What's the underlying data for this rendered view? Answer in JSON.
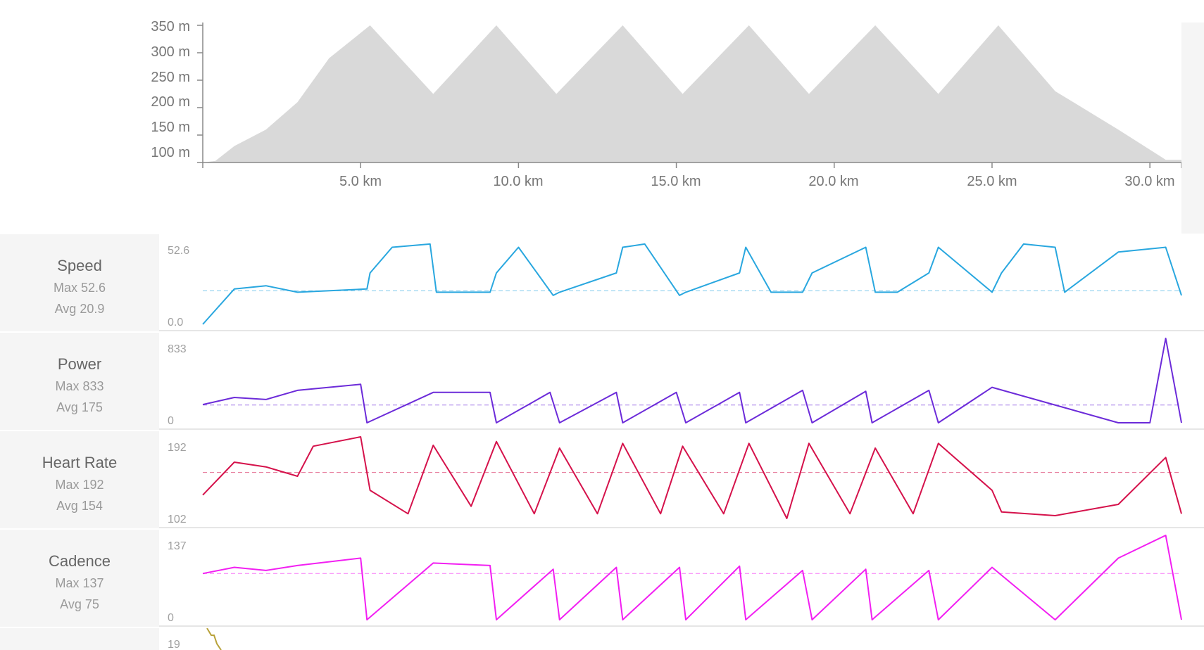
{
  "elevation": {
    "y_ticks": [
      "350 m",
      "300 m",
      "250 m",
      "200 m",
      "150 m",
      "100 m"
    ],
    "x_ticks": [
      "5.0 km",
      "10.0 km",
      "15.0 km",
      "20.0 km",
      "25.0 km",
      "30.0 km"
    ]
  },
  "metrics": [
    {
      "key": "speed",
      "name": "Speed",
      "max": "Max 52.6",
      "avg": "Avg 20.9",
      "top": "52.6",
      "bottom": "0.0",
      "color": "#29a7df"
    },
    {
      "key": "power",
      "name": "Power",
      "max": "Max 833",
      "avg": "Avg 175",
      "top": "833",
      "bottom": "0",
      "color": "#6c2bd9"
    },
    {
      "key": "heart",
      "name": "Heart Rate",
      "max": "Max 192",
      "avg": "Avg 154",
      "top": "192",
      "bottom": "102",
      "color": "#d5124b"
    },
    {
      "key": "cadence",
      "name": "Cadence",
      "max": "Max 137",
      "avg": "Avg 75",
      "top": "137",
      "bottom": "0",
      "color": "#f21ff2"
    }
  ],
  "partial_row": {
    "top": "19"
  },
  "chart_data": [
    {
      "type": "area",
      "title": "",
      "xlabel": "",
      "ylabel": "",
      "x_unit": "km",
      "y_unit": "m",
      "xlim": [
        0,
        31
      ],
      "ylim": [
        100,
        350
      ],
      "x": [
        0,
        0.4,
        1.0,
        2.0,
        3.0,
        4.0,
        5.3,
        7.3,
        9.3,
        11.2,
        13.3,
        15.2,
        17.3,
        19.2,
        21.3,
        23.3,
        25.2,
        27.0,
        29.0,
        30.5,
        31.0
      ],
      "values": [
        100,
        103,
        130,
        160,
        210,
        290,
        350,
        225,
        350,
        225,
        350,
        225,
        350,
        225,
        350,
        225,
        350,
        230,
        160,
        105,
        105
      ],
      "series": [
        {
          "values": [
            100,
            103,
            130,
            160,
            210,
            290,
            350,
            225,
            350,
            225,
            350,
            225,
            350,
            225,
            350,
            225,
            350,
            230,
            160,
            105,
            105
          ]
        }
      ],
      "color": "#d9d9d9",
      "grid": false
    },
    {
      "type": "line",
      "name": "Speed",
      "x": [
        0,
        1,
        2,
        3,
        5.2,
        5.3,
        6,
        7.2,
        7.4,
        9.1,
        9.3,
        10,
        11.1,
        11.3,
        13.1,
        13.3,
        14,
        15.1,
        15.3,
        17.0,
        17.2,
        18,
        19.0,
        19.3,
        21.0,
        21.3,
        22,
        23.0,
        23.3,
        25.0,
        25.3,
        26,
        27.0,
        27.3,
        29,
        30.5,
        31
      ],
      "values": [
        0,
        22,
        24,
        20,
        22,
        32,
        48,
        50,
        20,
        20,
        32,
        48,
        18,
        20,
        32,
        48,
        50,
        18,
        20,
        32,
        48,
        20,
        20,
        32,
        48,
        20,
        20,
        32,
        48,
        20,
        32,
        50,
        48,
        20,
        45,
        48,
        18
      ],
      "ylim": [
        0,
        52.6
      ],
      "average": 20.9,
      "color": "#29a7df"
    },
    {
      "type": "line",
      "name": "Power",
      "x": [
        0,
        1,
        2,
        3,
        5.0,
        5.2,
        7.3,
        9.1,
        9.3,
        11.0,
        11.3,
        13.1,
        13.3,
        15.0,
        15.3,
        17.0,
        17.2,
        19.0,
        19.3,
        21.0,
        21.2,
        23.0,
        23.3,
        25.0,
        29,
        30.0,
        30.5,
        31
      ],
      "values": [
        180,
        250,
        230,
        320,
        380,
        0,
        300,
        300,
        0,
        300,
        0,
        300,
        0,
        300,
        0,
        300,
        0,
        320,
        0,
        310,
        0,
        320,
        0,
        350,
        0,
        0,
        833,
        0
      ],
      "ylim": [
        0,
        833
      ],
      "average": 175,
      "color": "#6c2bd9"
    },
    {
      "type": "line",
      "name": "Heart Rate",
      "x": [
        0,
        1,
        2,
        3,
        3.5,
        5.0,
        5.3,
        6.5,
        7.3,
        8.5,
        9.3,
        10.5,
        11.3,
        12.5,
        13.3,
        14.5,
        15.2,
        16.5,
        17.3,
        18.5,
        19.2,
        20.5,
        21.3,
        22.5,
        23.3,
        25.0,
        25.3,
        27,
        29,
        30.5,
        31
      ],
      "values": [
        130,
        165,
        160,
        150,
        182,
        192,
        135,
        110,
        183,
        118,
        187,
        110,
        180,
        110,
        185,
        110,
        182,
        110,
        185,
        105,
        185,
        110,
        180,
        110,
        185,
        135,
        112,
        108,
        120,
        170,
        110
      ],
      "ylim": [
        102,
        192
      ],
      "average": 154,
      "color": "#d5124b"
    },
    {
      "type": "line",
      "name": "Cadence",
      "x": [
        0,
        1,
        2,
        3,
        5.0,
        5.2,
        7.3,
        9.1,
        9.3,
        11.1,
        11.3,
        13.1,
        13.3,
        15.1,
        15.3,
        17.0,
        17.2,
        19.0,
        19.3,
        21.0,
        21.2,
        23.0,
        23.3,
        25.0,
        27,
        29,
        30.5,
        31
      ],
      "values": [
        75,
        85,
        80,
        88,
        100,
        0,
        92,
        88,
        0,
        82,
        0,
        85,
        0,
        85,
        0,
        87,
        0,
        80,
        0,
        82,
        0,
        80,
        0,
        85,
        0,
        100,
        137,
        0
      ],
      "ylim": [
        0,
        137
      ],
      "average": 75,
      "color": "#f21ff2"
    }
  ]
}
